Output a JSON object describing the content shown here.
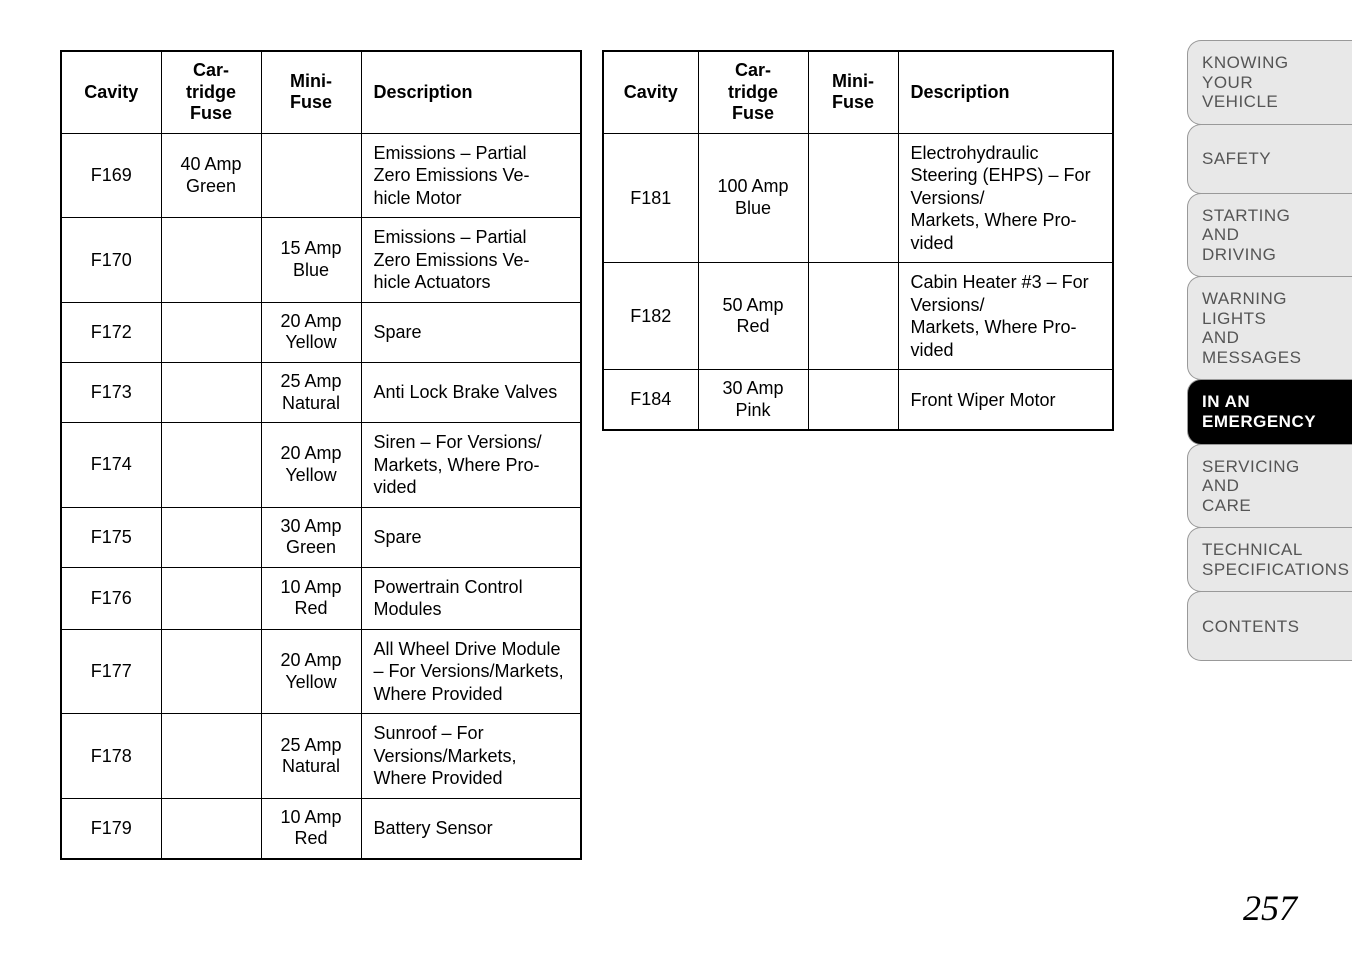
{
  "table1": {
    "headers": {
      "cavity": "Cavity",
      "cartridge": "Car-\ntridge\nFuse",
      "mini": "Mini-\nFuse",
      "description": "Description"
    },
    "rows": [
      {
        "cavity": "F169",
        "cartridge": "40 Amp\nGreen",
        "mini": "",
        "description": "Emissions – Partial Zero Emissions Ve-\nhicle Motor"
      },
      {
        "cavity": "F170",
        "cartridge": "",
        "mini": "15 Amp\nBlue",
        "description": "Emissions – Partial Zero Emissions Ve-\nhicle Actuators"
      },
      {
        "cavity": "F172",
        "cartridge": "",
        "mini": "20 Amp\nYellow",
        "description": "Spare"
      },
      {
        "cavity": "F173",
        "cartridge": "",
        "mini": "25 Amp\nNatural",
        "description": "Anti Lock Brake Valves"
      },
      {
        "cavity": "F174",
        "cartridge": "",
        "mini": "20 Amp\nYellow",
        "description": "Siren – For Versions/\nMarkets, Where Pro-\nvided"
      },
      {
        "cavity": "F175",
        "cartridge": "",
        "mini": "30 Amp\nGreen",
        "description": "Spare"
      },
      {
        "cavity": "F176",
        "cartridge": "",
        "mini": "10 Amp\nRed",
        "description": "Powertrain Control Modules"
      },
      {
        "cavity": "F177",
        "cartridge": "",
        "mini": "20 Amp\nYellow",
        "description": "All Wheel Drive Module – For Versions/Markets, Where Provided"
      },
      {
        "cavity": "F178",
        "cartridge": "",
        "mini": "25 Amp\nNatural",
        "description": "Sunroof – For Versions/Markets, Where Provided"
      },
      {
        "cavity": "F179",
        "cartridge": "",
        "mini": "10 Amp\nRed",
        "description": "Battery Sensor"
      }
    ]
  },
  "table2": {
    "headers": {
      "cavity": "Cavity",
      "cartridge": "Car-\ntridge\nFuse",
      "mini": "Mini-\nFuse",
      "description": "Description"
    },
    "rows": [
      {
        "cavity": "F181",
        "cartridge": "100 Amp\nBlue",
        "mini": "",
        "description": "Electrohydraulic Steering (EHPS) – For Versions/\nMarkets, Where Pro-\nvided"
      },
      {
        "cavity": "F182",
        "cartridge": "50 Amp\nRed",
        "mini": "",
        "description": "Cabin Heater #3 – For Versions/\nMarkets, Where Pro-\nvided"
      },
      {
        "cavity": "F184",
        "cartridge": "30 Amp\nPink",
        "mini": "",
        "description": "Front Wiper Motor"
      }
    ]
  },
  "sidebar": {
    "items": [
      {
        "label": "KNOWING\nYOUR\nVEHICLE",
        "active": false,
        "size": "large"
      },
      {
        "label": "SAFETY",
        "active": false,
        "size": "large"
      },
      {
        "label": "STARTING\nAND\nDRIVING",
        "active": false,
        "size": "large"
      },
      {
        "label": "WARNING\nLIGHTS\nAND\nMESSAGES",
        "active": false,
        "size": "large"
      },
      {
        "label": "IN AN\nEMERGENCY",
        "active": true,
        "size": "small"
      },
      {
        "label": "SERVICING\nAND\nCARE",
        "active": false,
        "size": "large"
      },
      {
        "label": "TECHNICAL\nSPECIFICATIONS",
        "active": false,
        "size": "small"
      },
      {
        "label": "CONTENTS",
        "active": false,
        "size": "large"
      }
    ]
  },
  "pageNumber": "257"
}
